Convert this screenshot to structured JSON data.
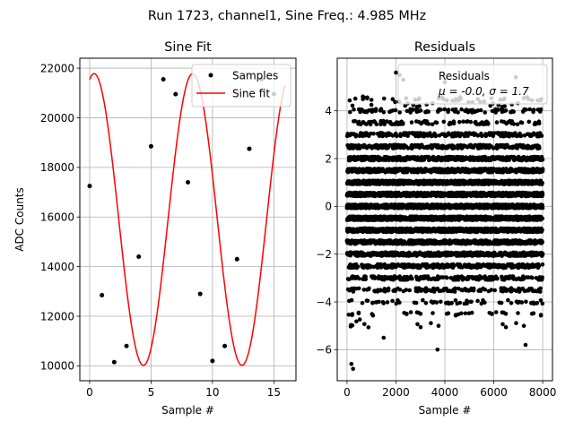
{
  "figure": {
    "suptitle": "Run 1723, channel1, Sine Freq.: 4.985 MHz"
  },
  "colors": {
    "fit_line": "#ff0000",
    "points": "#000000",
    "grid": "#b0b0b0",
    "axes": "#000000"
  },
  "chart_data": [
    {
      "type": "scatter",
      "title": "Sine Fit",
      "xlabel": "Sample #",
      "ylabel": "ADC Counts",
      "xlim": [
        -0.8,
        16.8
      ],
      "ylim": [
        9400,
        22400
      ],
      "xticks": [
        0,
        5,
        10,
        15
      ],
      "yticks": [
        10000,
        12000,
        14000,
        16000,
        18000,
        20000,
        22000
      ],
      "grid": true,
      "legend_loc": "upper right",
      "series": [
        {
          "name": "Samples",
          "kind": "points",
          "x": [
            0,
            1,
            2,
            3,
            4,
            5,
            6,
            7,
            8,
            9,
            10,
            11,
            12,
            13,
            14,
            15
          ],
          "y": [
            17250,
            12850,
            10150,
            10800,
            14400,
            18850,
            21550,
            20950,
            17400,
            12900,
            10200,
            10800,
            14300,
            18750,
            21550,
            20950
          ]
        },
        {
          "name": "Sine fit",
          "kind": "line",
          "function": "sine",
          "amplitude": 5880,
          "offset": 15900,
          "period": 8.025,
          "phase_at_zero": 0.2045,
          "x_range": [
            0,
            15.9
          ]
        }
      ]
    },
    {
      "type": "scatter",
      "title": "Residuals",
      "xlabel": "Sample #",
      "ylabel": "",
      "xlim": [
        -400,
        8400
      ],
      "ylim": [
        -7.3,
        6.2
      ],
      "xticks": [
        0,
        2000,
        4000,
        6000,
        8000
      ],
      "yticks": [
        -6,
        -4,
        -2,
        0,
        2,
        4
      ],
      "grid": true,
      "legend_loc": "upper right",
      "legend_entries": [
        "Residuals",
        "μ = -0.0, σ = 1.7"
      ],
      "series": [
        {
          "name": "Residuals",
          "kind": "points",
          "n_points": 8000,
          "x_range": [
            0,
            8000
          ],
          "mean": 0.0,
          "std": 1.7,
          "rounding": 0.5,
          "x_outliers": [
            180,
            250,
            2000,
            2150,
            2300,
            3700,
            6900,
            7300,
            650,
            1500,
            4000
          ],
          "y_outliers": [
            -6.6,
            -6.8,
            5.6,
            5.5,
            5.3,
            -6.0,
            5.4,
            -5.8,
            4.6,
            -5.5,
            5.2
          ]
        }
      ]
    }
  ]
}
